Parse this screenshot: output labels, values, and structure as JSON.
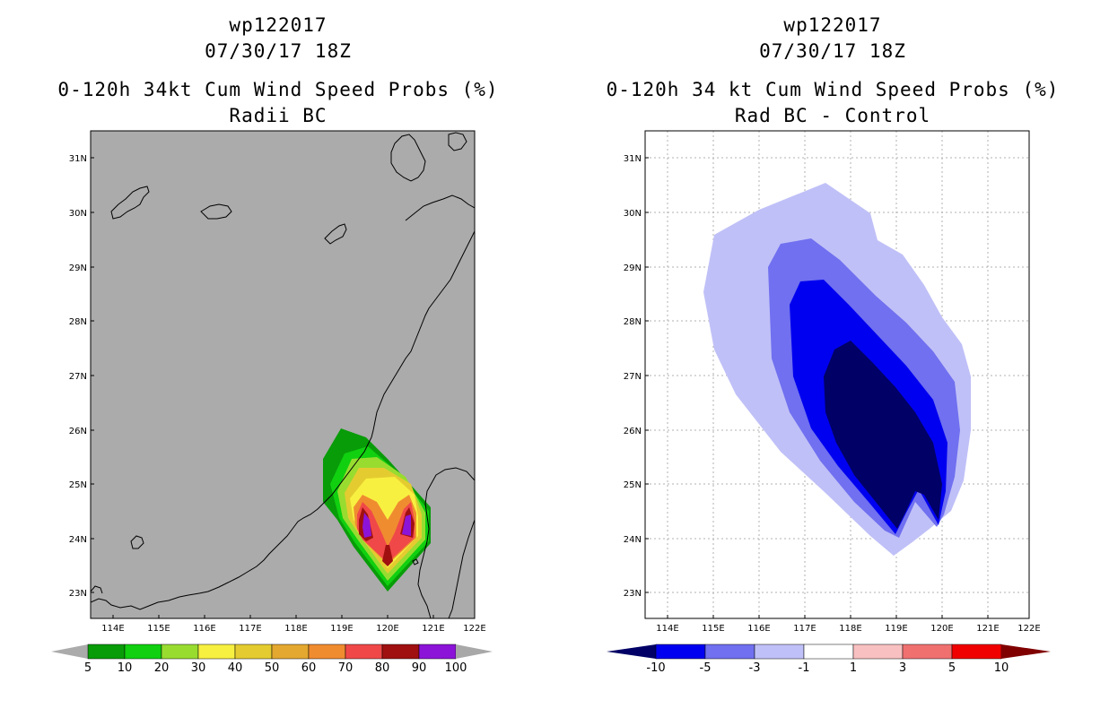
{
  "left_panel": {
    "line1": "wp122017",
    "line2": "07/30/17 18Z",
    "line3": "0-120h 34kt Cum Wind Speed Probs (%)",
    "line4": "Radii BC",
    "colorbar": {
      "labels": [
        "5",
        "10",
        "20",
        "30",
        "40",
        "50",
        "60",
        "70",
        "80",
        "90",
        "100"
      ],
      "colors": [
        "#ababab",
        "#089c08",
        "#10d010",
        "#98dc30",
        "#f8f040",
        "#e4cc30",
        "#e4a830",
        "#f08c30",
        "#f04848",
        "#a01010",
        "#8c14d8",
        "#a8a8a8"
      ]
    }
  },
  "right_panel": {
    "line1": "wp122017",
    "line2": "07/30/17 18Z",
    "line3": "0-120h 34 kt Cum Wind Speed Probs (%)",
    "line4": "Rad BC - Control",
    "colorbar": {
      "labels": [
        "-10",
        "-5",
        "-3",
        "-1",
        "1",
        "3",
        "5",
        "10"
      ],
      "colors": [
        "#000066",
        "#0000f0",
        "#7070f0",
        "#c0c0f8",
        "#ffffff",
        "#f8c0c0",
        "#f07070",
        "#f00000",
        "#800000"
      ]
    }
  },
  "map_axes": {
    "lat_labels": [
      "31N",
      "30N",
      "29N",
      "28N",
      "27N",
      "26N",
      "25N",
      "24N",
      "23N"
    ],
    "lon_labels": [
      "114E",
      "115E",
      "116E",
      "117E",
      "118E",
      "119E",
      "120E",
      "121E",
      "122E"
    ]
  }
}
